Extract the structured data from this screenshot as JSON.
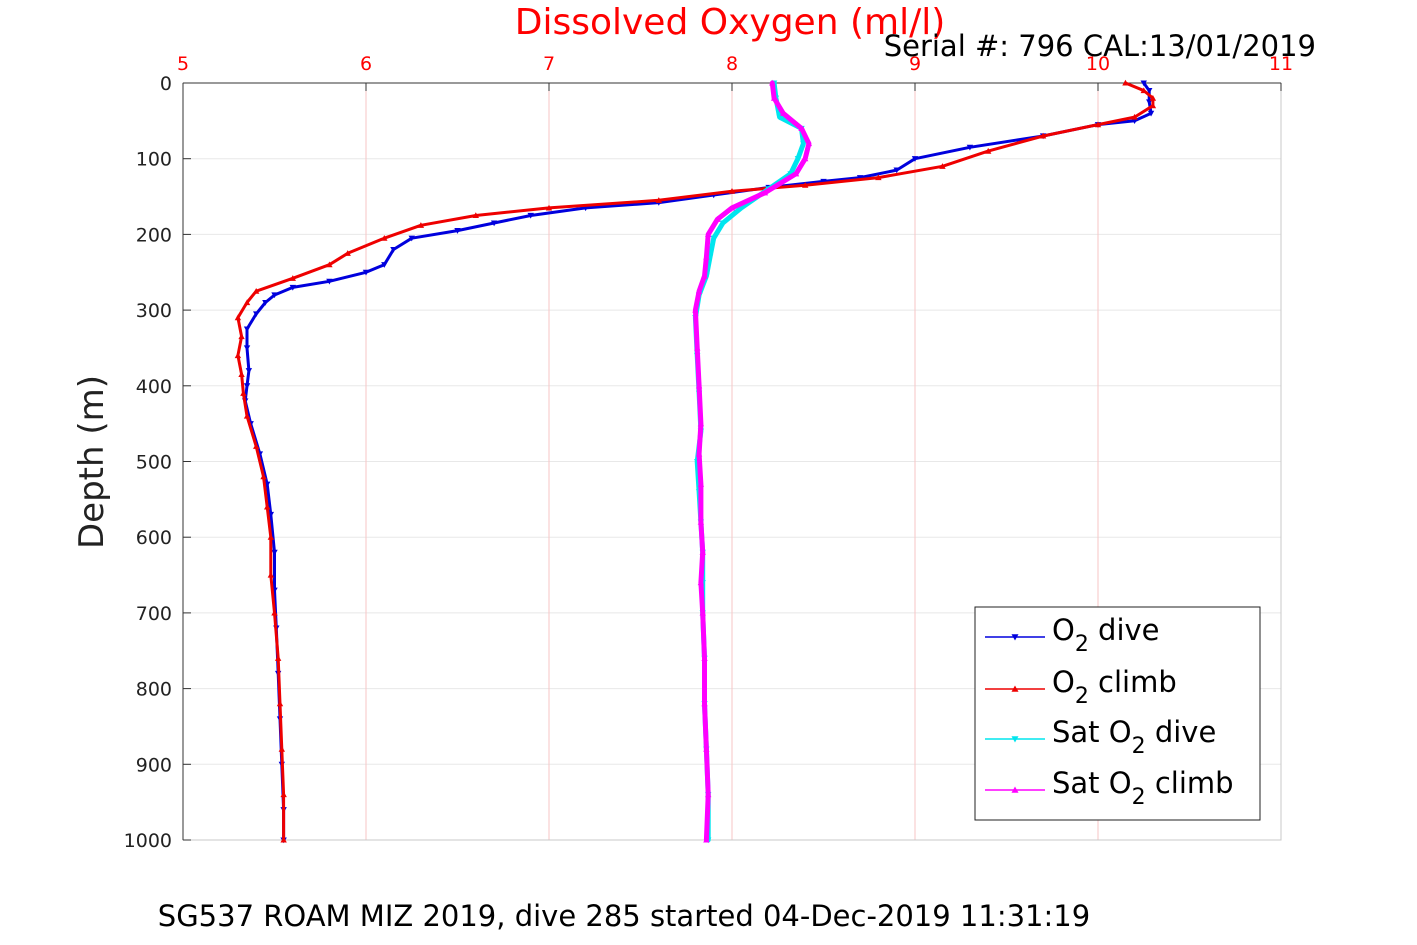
{
  "chart_data": {
    "type": "line",
    "title": "Dissolved Oxygen (ml/l)",
    "subtitle": "Serial #: 796  CAL:13/01/2019",
    "footer": "SG537 ROAM MIZ 2019, dive 285 started 04-Dec-2019 11:31:19",
    "xlabel": "",
    "ylabel": "Depth (m)",
    "xlim": [
      5,
      11
    ],
    "ylim": [
      0,
      1000
    ],
    "y_reversed": true,
    "x_axis_position": "top",
    "x_ticks": [
      "5",
      "6",
      "7",
      "8",
      "9",
      "10",
      "11"
    ],
    "y_ticks": [
      "0",
      "100",
      "200",
      "300",
      "400",
      "500",
      "600",
      "700",
      "800",
      "900",
      "1000"
    ],
    "grid": true,
    "legend_placement": "bottom-right",
    "colors": {
      "title": "#ff0000",
      "x_tick_labels": "#ff0000",
      "grid": "#e8e8e8",
      "x_grid": "#f7c6c6"
    },
    "series": [
      {
        "name": "O2 dive",
        "legend_main": "O",
        "legend_sub": "2",
        "legend_suffix": " dive",
        "color": "#0000dd",
        "marker": "triangle-down",
        "points": [
          [
            10.25,
            0
          ],
          [
            10.28,
            10
          ],
          [
            10.28,
            25
          ],
          [
            10.29,
            40
          ],
          [
            10.2,
            50
          ],
          [
            10.0,
            55
          ],
          [
            9.7,
            70
          ],
          [
            9.3,
            85
          ],
          [
            9.0,
            100
          ],
          [
            8.9,
            115
          ],
          [
            8.7,
            125
          ],
          [
            8.5,
            130
          ],
          [
            8.2,
            138
          ],
          [
            7.9,
            148
          ],
          [
            7.6,
            158
          ],
          [
            7.2,
            165
          ],
          [
            6.9,
            175
          ],
          [
            6.7,
            185
          ],
          [
            6.5,
            195
          ],
          [
            6.25,
            205
          ],
          [
            6.15,
            220
          ],
          [
            6.1,
            240
          ],
          [
            6.0,
            250
          ],
          [
            5.8,
            262
          ],
          [
            5.6,
            270
          ],
          [
            5.5,
            280
          ],
          [
            5.45,
            290
          ],
          [
            5.4,
            305
          ],
          [
            5.35,
            325
          ],
          [
            5.35,
            350
          ],
          [
            5.36,
            380
          ],
          [
            5.35,
            400
          ],
          [
            5.34,
            420
          ],
          [
            5.37,
            450
          ],
          [
            5.42,
            490
          ],
          [
            5.46,
            530
          ],
          [
            5.48,
            570
          ],
          [
            5.5,
            620
          ],
          [
            5.5,
            670
          ],
          [
            5.51,
            720
          ],
          [
            5.52,
            780
          ],
          [
            5.53,
            840
          ],
          [
            5.54,
            900
          ],
          [
            5.55,
            960
          ],
          [
            5.55,
            1000
          ]
        ]
      },
      {
        "name": "O2 climb",
        "legend_main": "O",
        "legend_sub": "2",
        "legend_suffix": " climb",
        "color": "#ee0000",
        "marker": "triangle-up",
        "points": [
          [
            10.15,
            0
          ],
          [
            10.25,
            10
          ],
          [
            10.3,
            20
          ],
          [
            10.3,
            30
          ],
          [
            10.2,
            45
          ],
          [
            10.0,
            55
          ],
          [
            9.7,
            70
          ],
          [
            9.4,
            90
          ],
          [
            9.15,
            110
          ],
          [
            8.8,
            125
          ],
          [
            8.4,
            135
          ],
          [
            8.0,
            143
          ],
          [
            7.6,
            155
          ],
          [
            7.0,
            165
          ],
          [
            6.6,
            175
          ],
          [
            6.3,
            188
          ],
          [
            6.1,
            205
          ],
          [
            5.9,
            225
          ],
          [
            5.8,
            240
          ],
          [
            5.6,
            258
          ],
          [
            5.4,
            275
          ],
          [
            5.35,
            290
          ],
          [
            5.3,
            310
          ],
          [
            5.32,
            335
          ],
          [
            5.3,
            360
          ],
          [
            5.32,
            385
          ],
          [
            5.33,
            410
          ],
          [
            5.35,
            440
          ],
          [
            5.4,
            480
          ],
          [
            5.44,
            520
          ],
          [
            5.46,
            560
          ],
          [
            5.48,
            600
          ],
          [
            5.48,
            650
          ],
          [
            5.5,
            700
          ],
          [
            5.52,
            760
          ],
          [
            5.53,
            820
          ],
          [
            5.54,
            880
          ],
          [
            5.55,
            940
          ],
          [
            5.55,
            1000
          ]
        ]
      },
      {
        "name": "Sat O2 dive",
        "legend_main": "Sat O",
        "legend_sub": "2",
        "legend_suffix": " dive",
        "color": "#00e5ee",
        "marker": "triangle-down",
        "points": [
          [
            8.23,
            0
          ],
          [
            8.24,
            20
          ],
          [
            8.26,
            45
          ],
          [
            8.38,
            60
          ],
          [
            8.39,
            80
          ],
          [
            8.36,
            100
          ],
          [
            8.32,
            120
          ],
          [
            8.2,
            140
          ],
          [
            8.05,
            165
          ],
          [
            7.95,
            185
          ],
          [
            7.9,
            205
          ],
          [
            7.88,
            230
          ],
          [
            7.86,
            255
          ],
          [
            7.82,
            280
          ],
          [
            7.8,
            310
          ],
          [
            7.81,
            360
          ],
          [
            7.82,
            410
          ],
          [
            7.83,
            460
          ],
          [
            7.81,
            500
          ],
          [
            7.82,
            540
          ],
          [
            7.83,
            580
          ],
          [
            7.84,
            620
          ],
          [
            7.84,
            660
          ],
          [
            7.84,
            700
          ],
          [
            7.85,
            760
          ],
          [
            7.85,
            820
          ],
          [
            7.86,
            880
          ],
          [
            7.87,
            940
          ],
          [
            7.87,
            1000
          ]
        ]
      },
      {
        "name": "Sat O2 climb",
        "legend_main": "Sat O",
        "legend_sub": "2",
        "legend_suffix": " climb",
        "color": "#ff00ff",
        "marker": "triangle-up",
        "points": [
          [
            8.22,
            0
          ],
          [
            8.23,
            20
          ],
          [
            8.28,
            40
          ],
          [
            8.38,
            60
          ],
          [
            8.42,
            80
          ],
          [
            8.4,
            100
          ],
          [
            8.35,
            120
          ],
          [
            8.18,
            145
          ],
          [
            8.0,
            165
          ],
          [
            7.92,
            180
          ],
          [
            7.87,
            200
          ],
          [
            7.86,
            230
          ],
          [
            7.85,
            255
          ],
          [
            7.82,
            275
          ],
          [
            7.8,
            300
          ],
          [
            7.81,
            350
          ],
          [
            7.82,
            400
          ],
          [
            7.83,
            450
          ],
          [
            7.82,
            490
          ],
          [
            7.83,
            530
          ],
          [
            7.83,
            580
          ],
          [
            7.84,
            620
          ],
          [
            7.83,
            660
          ],
          [
            7.84,
            700
          ],
          [
            7.85,
            760
          ],
          [
            7.85,
            820
          ],
          [
            7.86,
            880
          ],
          [
            7.87,
            940
          ],
          [
            7.86,
            1000
          ]
        ]
      }
    ]
  }
}
